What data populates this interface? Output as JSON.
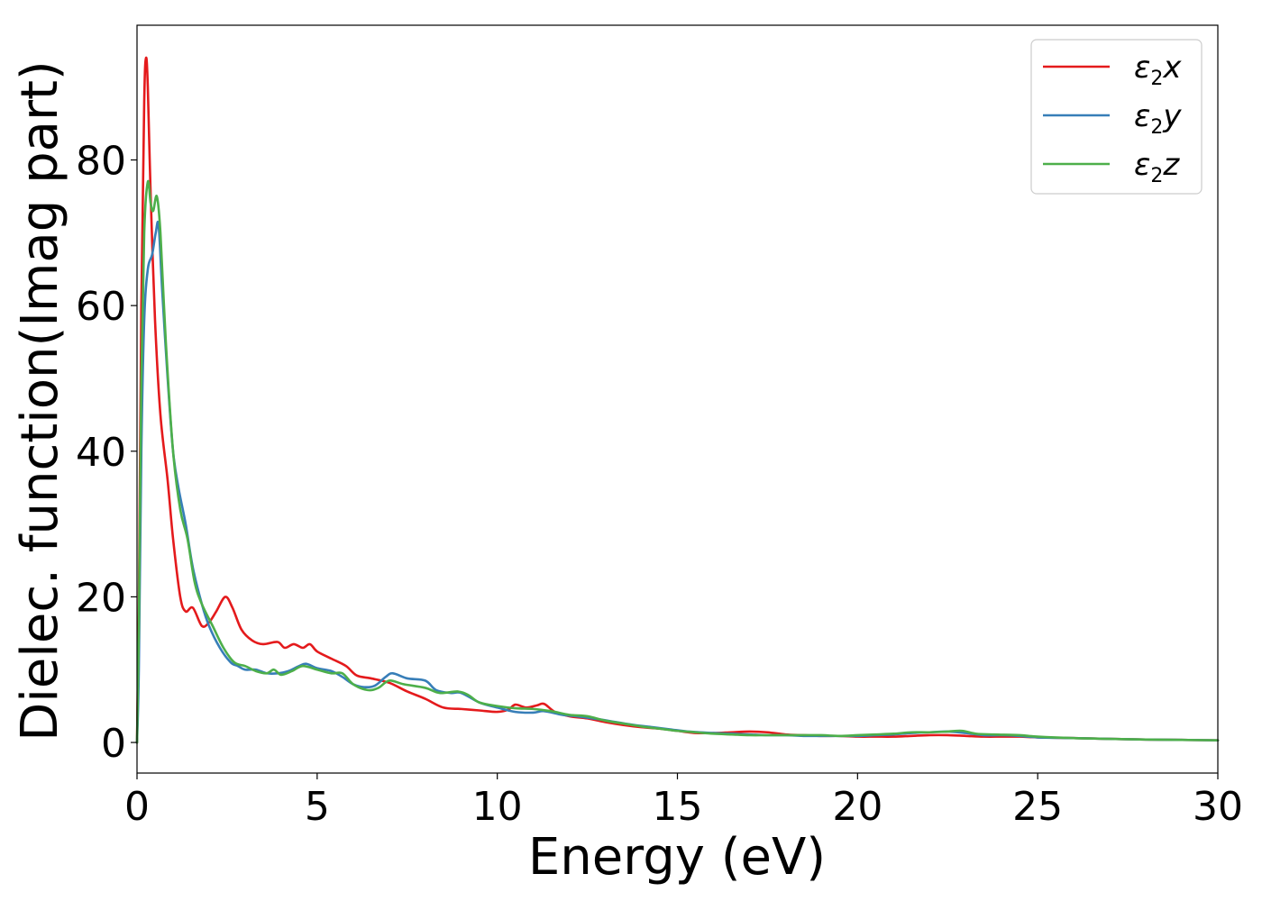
{
  "chart_data": {
    "type": "line",
    "title": "",
    "xlabel": "Energy (eV)",
    "ylabel": "Dielec. function(Imag part)",
    "xlim": [
      0,
      30
    ],
    "ylim": [
      -4.2,
      98.5
    ],
    "xticks": [
      0,
      5,
      10,
      15,
      20,
      25,
      30
    ],
    "yticks": [
      0,
      20,
      40,
      60,
      80
    ],
    "grid": false,
    "legend_position": "top-right",
    "series": [
      {
        "name": "ε2x",
        "legend_base": "ε",
        "legend_sub": "2",
        "legend_suffix": "x",
        "color": "#e41a1c",
        "points": [
          [
            0,
            0
          ],
          [
            0.05,
            18
          ],
          [
            0.12,
            60
          ],
          [
            0.2,
            88
          ],
          [
            0.25,
            94
          ],
          [
            0.3,
            90
          ],
          [
            0.38,
            75
          ],
          [
            0.5,
            58
          ],
          [
            0.65,
            45
          ],
          [
            0.85,
            36
          ],
          [
            1.0,
            28
          ],
          [
            1.2,
            20
          ],
          [
            1.35,
            18
          ],
          [
            1.55,
            18.5
          ],
          [
            1.8,
            16
          ],
          [
            2.0,
            16.5
          ],
          [
            2.2,
            18
          ],
          [
            2.45,
            20
          ],
          [
            2.65,
            18.5
          ],
          [
            2.9,
            15.5
          ],
          [
            3.2,
            14
          ],
          [
            3.5,
            13.5
          ],
          [
            3.9,
            13.8
          ],
          [
            4.1,
            13
          ],
          [
            4.35,
            13.5
          ],
          [
            4.6,
            13
          ],
          [
            4.8,
            13.5
          ],
          [
            5.0,
            12.5
          ],
          [
            5.4,
            11.5
          ],
          [
            5.8,
            10.5
          ],
          [
            6.1,
            9.2
          ],
          [
            6.5,
            8.8
          ],
          [
            7.0,
            8.2
          ],
          [
            7.5,
            7.0
          ],
          [
            8.0,
            6.0
          ],
          [
            8.5,
            4.8
          ],
          [
            9.0,
            4.6
          ],
          [
            9.5,
            4.4
          ],
          [
            10.0,
            4.2
          ],
          [
            10.3,
            4.5
          ],
          [
            10.5,
            5.2
          ],
          [
            10.8,
            4.8
          ],
          [
            11.1,
            5.1
          ],
          [
            11.3,
            5.3
          ],
          [
            11.6,
            4.2
          ],
          [
            12.0,
            3.6
          ],
          [
            12.5,
            3.3
          ],
          [
            13.0,
            2.8
          ],
          [
            13.5,
            2.4
          ],
          [
            14.0,
            2.1
          ],
          [
            14.5,
            1.9
          ],
          [
            15.0,
            1.6
          ],
          [
            15.5,
            1.3
          ],
          [
            16.0,
            1.3
          ],
          [
            16.5,
            1.4
          ],
          [
            17.0,
            1.5
          ],
          [
            17.5,
            1.4
          ],
          [
            18.0,
            1.1
          ],
          [
            18.5,
            1.0
          ],
          [
            19.0,
            0.9
          ],
          [
            19.5,
            0.9
          ],
          [
            20.0,
            0.8
          ],
          [
            20.5,
            0.8
          ],
          [
            21.0,
            0.8
          ],
          [
            21.5,
            0.9
          ],
          [
            22.0,
            1.0
          ],
          [
            22.5,
            1.0
          ],
          [
            23.0,
            0.9
          ],
          [
            23.5,
            0.8
          ],
          [
            24.0,
            0.8
          ],
          [
            24.5,
            0.8
          ],
          [
            25.0,
            0.7
          ],
          [
            26.0,
            0.6
          ],
          [
            27.0,
            0.5
          ],
          [
            28.0,
            0.4
          ],
          [
            29.0,
            0.35
          ],
          [
            30.0,
            0.3
          ]
        ]
      },
      {
        "name": "ε2y",
        "legend_base": "ε",
        "legend_sub": "2",
        "legend_suffix": "y",
        "color": "#377eb8",
        "points": [
          [
            0,
            0
          ],
          [
            0.05,
            10
          ],
          [
            0.12,
            40
          ],
          [
            0.2,
            58
          ],
          [
            0.3,
            65
          ],
          [
            0.42,
            67
          ],
          [
            0.52,
            70
          ],
          [
            0.6,
            71
          ],
          [
            0.7,
            62
          ],
          [
            0.85,
            50
          ],
          [
            1.0,
            40
          ],
          [
            1.15,
            35
          ],
          [
            1.35,
            30
          ],
          [
            1.55,
            24
          ],
          [
            1.8,
            19
          ],
          [
            2.0,
            16
          ],
          [
            2.3,
            13
          ],
          [
            2.6,
            11
          ],
          [
            2.8,
            10.5
          ],
          [
            3.0,
            10
          ],
          [
            3.3,
            10
          ],
          [
            3.6,
            9.5
          ],
          [
            3.9,
            9.5
          ],
          [
            4.2,
            9.8
          ],
          [
            4.5,
            10.5
          ],
          [
            4.7,
            10.8
          ],
          [
            5.0,
            10.2
          ],
          [
            5.4,
            9.8
          ],
          [
            5.7,
            9.0
          ],
          [
            6.0,
            8.0
          ],
          [
            6.3,
            7.6
          ],
          [
            6.6,
            7.8
          ],
          [
            6.9,
            9.0
          ],
          [
            7.1,
            9.5
          ],
          [
            7.5,
            8.8
          ],
          [
            8.0,
            8.5
          ],
          [
            8.3,
            7.2
          ],
          [
            8.7,
            6.8
          ],
          [
            9.0,
            6.8
          ],
          [
            9.5,
            5.5
          ],
          [
            10.0,
            4.8
          ],
          [
            10.5,
            4.2
          ],
          [
            11.0,
            4.1
          ],
          [
            11.3,
            4.3
          ],
          [
            11.8,
            3.8
          ],
          [
            12.2,
            3.6
          ],
          [
            12.8,
            3.2
          ],
          [
            13.3,
            2.8
          ],
          [
            13.8,
            2.4
          ],
          [
            14.3,
            2.1
          ],
          [
            14.8,
            1.8
          ],
          [
            15.3,
            1.5
          ],
          [
            16.0,
            1.3
          ],
          [
            16.5,
            1.2
          ],
          [
            17.0,
            1.1
          ],
          [
            17.5,
            1.0
          ],
          [
            18.0,
            1.0
          ],
          [
            18.5,
            0.9
          ],
          [
            19.0,
            0.9
          ],
          [
            19.5,
            0.9
          ],
          [
            20.0,
            0.9
          ],
          [
            20.5,
            1.0
          ],
          [
            21.0,
            1.1
          ],
          [
            21.5,
            1.3
          ],
          [
            22.0,
            1.4
          ],
          [
            22.5,
            1.5
          ],
          [
            23.0,
            1.3
          ],
          [
            23.5,
            1.0
          ],
          [
            24.0,
            1.0
          ],
          [
            24.5,
            0.9
          ],
          [
            25.0,
            0.7
          ],
          [
            26.0,
            0.6
          ],
          [
            27.0,
            0.5
          ],
          [
            28.0,
            0.4
          ],
          [
            29.0,
            0.35
          ],
          [
            30.0,
            0.3
          ]
        ]
      },
      {
        "name": "ε2z",
        "legend_base": "ε",
        "legend_sub": "2",
        "legend_suffix": "z",
        "color": "#4daf4a",
        "points": [
          [
            0,
            0
          ],
          [
            0.05,
            15
          ],
          [
            0.12,
            50
          ],
          [
            0.2,
            70
          ],
          [
            0.3,
            77
          ],
          [
            0.38,
            74
          ],
          [
            0.45,
            73
          ],
          [
            0.55,
            75
          ],
          [
            0.65,
            70
          ],
          [
            0.8,
            55
          ],
          [
            1.0,
            40
          ],
          [
            1.2,
            32
          ],
          [
            1.4,
            28
          ],
          [
            1.6,
            22
          ],
          [
            1.8,
            19
          ],
          [
            2.1,
            16
          ],
          [
            2.4,
            13
          ],
          [
            2.7,
            11
          ],
          [
            3.0,
            10.5
          ],
          [
            3.3,
            9.8
          ],
          [
            3.6,
            9.5
          ],
          [
            3.8,
            10
          ],
          [
            4.0,
            9.3
          ],
          [
            4.3,
            9.8
          ],
          [
            4.6,
            10.5
          ],
          [
            5.0,
            10.0
          ],
          [
            5.4,
            9.5
          ],
          [
            5.7,
            9.5
          ],
          [
            6.0,
            8.0
          ],
          [
            6.4,
            7.2
          ],
          [
            6.7,
            7.5
          ],
          [
            7.0,
            8.5
          ],
          [
            7.4,
            8.0
          ],
          [
            8.0,
            7.5
          ],
          [
            8.4,
            6.8
          ],
          [
            8.9,
            7.0
          ],
          [
            9.2,
            6.5
          ],
          [
            9.5,
            5.5
          ],
          [
            10.0,
            5.0
          ],
          [
            10.5,
            4.7
          ],
          [
            11.0,
            4.6
          ],
          [
            11.5,
            4.3
          ],
          [
            12.0,
            3.8
          ],
          [
            12.5,
            3.6
          ],
          [
            13.0,
            3.0
          ],
          [
            13.5,
            2.6
          ],
          [
            14.0,
            2.2
          ],
          [
            14.5,
            1.9
          ],
          [
            15.0,
            1.6
          ],
          [
            15.5,
            1.4
          ],
          [
            16.0,
            1.2
          ],
          [
            16.5,
            1.1
          ],
          [
            17.0,
            1.0
          ],
          [
            17.5,
            1.0
          ],
          [
            18.0,
            1.0
          ],
          [
            18.5,
            1.0
          ],
          [
            19.0,
            1.0
          ],
          [
            19.5,
            0.9
          ],
          [
            20.0,
            1.0
          ],
          [
            20.5,
            1.1
          ],
          [
            21.0,
            1.2
          ],
          [
            21.5,
            1.4
          ],
          [
            22.0,
            1.4
          ],
          [
            22.5,
            1.5
          ],
          [
            22.9,
            1.6
          ],
          [
            23.3,
            1.2
          ],
          [
            23.8,
            1.1
          ],
          [
            24.5,
            1.0
          ],
          [
            25.0,
            0.8
          ],
          [
            26.0,
            0.6
          ],
          [
            27.0,
            0.5
          ],
          [
            28.0,
            0.4
          ],
          [
            29.0,
            0.35
          ],
          [
            30.0,
            0.3
          ]
        ]
      }
    ]
  }
}
